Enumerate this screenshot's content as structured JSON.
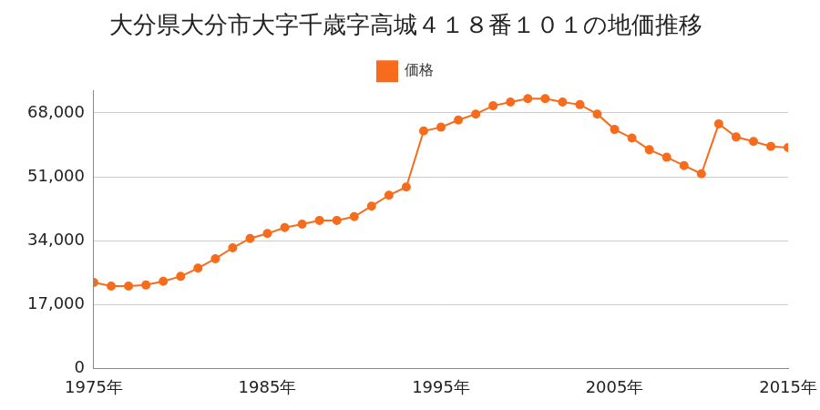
{
  "chart_data": {
    "type": "line",
    "title": "大分県大分市大字千歳字高城４１８番１０１の地価推移",
    "categories": [
      "1975年",
      null,
      null,
      null,
      null,
      null,
      null,
      null,
      null,
      null,
      "1985年",
      null,
      null,
      null,
      null,
      null,
      null,
      null,
      null,
      null,
      "1995年",
      null,
      null,
      null,
      null,
      null,
      null,
      null,
      null,
      null,
      "2005年",
      null,
      null,
      null,
      null,
      null,
      null,
      null,
      null,
      null,
      "2015年"
    ],
    "series": [
      {
        "name": "価格",
        "color": "#f76c1c",
        "marker": "circle",
        "values": [
          22900,
          21900,
          21900,
          22200,
          23200,
          24500,
          26700,
          29200,
          32100,
          34600,
          35900,
          37500,
          38400,
          39400,
          39400,
          40400,
          43200,
          46100,
          48300,
          63200,
          64200,
          66100,
          67700,
          69900,
          70900,
          71800,
          71800,
          70900,
          70200,
          67700,
          63600,
          61300,
          58200,
          56200,
          54000,
          51800,
          65100,
          61600,
          60400,
          59100,
          58800
        ]
      }
    ],
    "ylim": [
      0,
      74000
    ],
    "yticks": [
      0,
      {
        "value": 17000,
        "label": "17,000"
      },
      {
        "value": 34000,
        "label": "34,000"
      },
      {
        "value": 51000,
        "label": "51,000"
      },
      {
        "value": 68000,
        "label": "68,000"
      }
    ],
    "grid": true,
    "legend": "top"
  }
}
